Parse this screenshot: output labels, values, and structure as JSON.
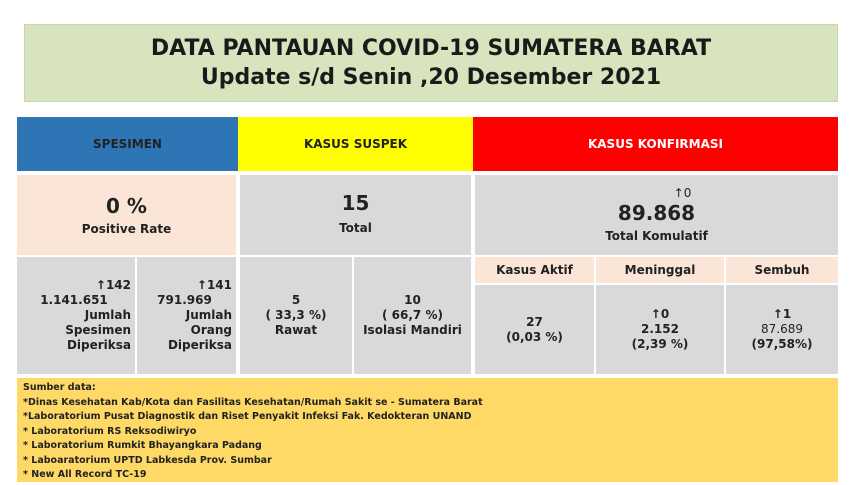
{
  "header": {
    "title": "DATA PANTAUAN COVID-19 SUMATERA BARAT",
    "subtitle": "Update s/d Senin ,20 Desember 2021"
  },
  "spesimen": {
    "heading": "SPESIMEN",
    "rate": "0 %",
    "rate_label": "Positive Rate",
    "items": [
      {
        "change": "↑142",
        "value": "1.141.651",
        "label": "Jumlah Spesimen Diperiksa"
      },
      {
        "change": "↑141",
        "value": "791.969",
        "label": "Jumlah Orang Diperiksa"
      }
    ]
  },
  "suspek": {
    "heading": "KASUS SUSPEK",
    "total": "15",
    "total_label": "Total",
    "items": [
      {
        "value": "5",
        "percent": "( 33,3 %)",
        "label": "Rawat"
      },
      {
        "value": "10",
        "percent": "( 66,7 %)",
        "label": "Isolasi Mandiri"
      }
    ]
  },
  "konfirmasi": {
    "heading": "KASUS KONFIRMASI",
    "change": "↑0",
    "total": "89.868",
    "total_label": "Total Komulatif",
    "items": [
      {
        "label": "Kasus Aktif",
        "value": "27",
        "percent": "(0,03 %)"
      },
      {
        "label": "Meninggal",
        "change": "↑0",
        "value": "2.152",
        "percent": "(2,39 %)"
      },
      {
        "label": "Sembuh",
        "change": "↑1",
        "value": "87.689",
        "percent": "(97,58%)"
      }
    ]
  },
  "sources": {
    "heading": "Sumber data:",
    "items": [
      "*Dinas Kesehatan Kab/Kota  dan Fasilitas Kesehatan/Rumah Sakit se - Sumatera Barat",
      "*Laboratorium  Pusat Diagnostik dan Riset  Penyakit Infeksi Fak. Kedokteran UNAND",
      "* Laboratorium RS Reksodiwiryo",
      "* Laboratorium Rumkit Bhayangkara Padang",
      "* Laboaratorium UPTD Labkesda Prov. Sumbar",
      "* New All Record TC-19"
    ]
  }
}
